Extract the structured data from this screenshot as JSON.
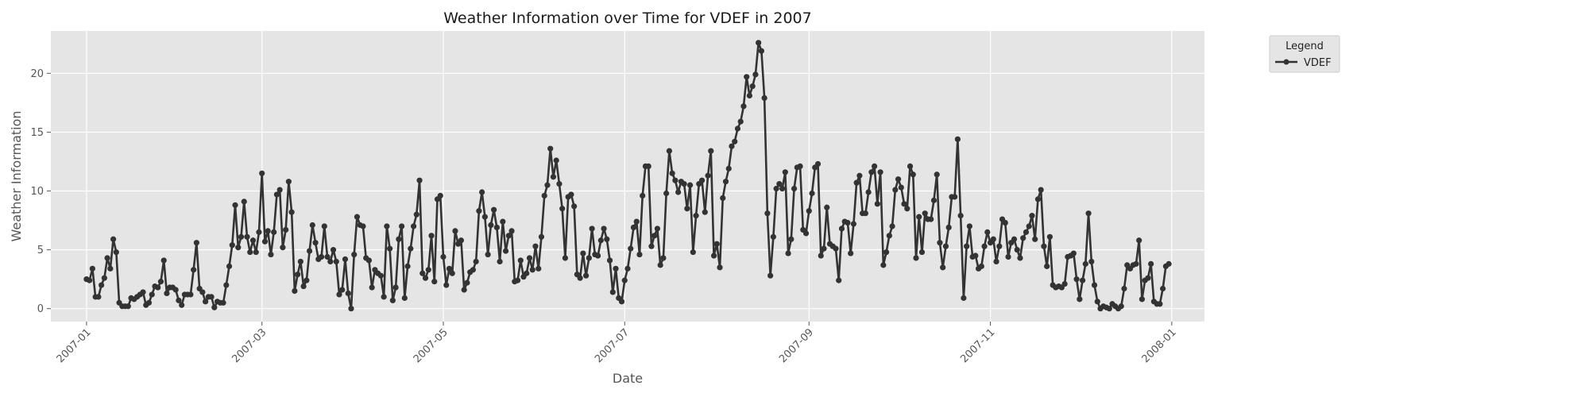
{
  "chart_data": {
    "type": "line",
    "title": "Weather Information over Time for VDEF in 2007",
    "xlabel": "Date",
    "ylabel": "Weather Information",
    "xlim": [
      "2006-12-20",
      "2008-01-12"
    ],
    "ylim": [
      -1.1,
      23.6
    ],
    "x_ticks": [
      "2007-01",
      "2007-03",
      "2007-05",
      "2007-07",
      "2007-09",
      "2007-11",
      "2008-01"
    ],
    "y_ticks": [
      0,
      5,
      10,
      15,
      20
    ],
    "grid": true,
    "legend": {
      "title": "Legend",
      "placement": "outside-top-right"
    },
    "colors": {
      "series": "#333333",
      "plot_bg": "#e5e5e5",
      "grid": "#ffffff"
    },
    "series": [
      {
        "name": "VDEF",
        "start": "2007-01-01",
        "step_days": 1,
        "values": [
          2.5,
          2.4,
          3.4,
          1.0,
          1.0,
          2.0,
          2.6,
          4.3,
          3.4,
          5.9,
          4.8,
          0.5,
          0.2,
          0.2,
          0.2,
          0.9,
          0.8,
          1.0,
          1.2,
          1.4,
          0.3,
          0.5,
          1.2,
          1.9,
          1.8,
          2.3,
          4.1,
          1.3,
          1.8,
          1.8,
          1.6,
          0.7,
          0.3,
          1.2,
          1.2,
          1.2,
          3.3,
          5.6,
          1.7,
          1.4,
          0.6,
          1.0,
          1.0,
          0.1,
          0.6,
          0.5,
          0.5,
          2.0,
          3.6,
          5.4,
          8.8,
          5.2,
          6.1,
          9.1,
          6.1,
          4.8,
          5.8,
          4.8,
          6.5,
          11.5,
          5.7,
          6.6,
          4.6,
          6.5,
          9.7,
          10.1,
          5.2,
          6.7,
          10.8,
          8.2,
          1.5,
          2.9,
          4.0,
          1.9,
          2.4,
          4.9,
          7.1,
          5.6,
          4.2,
          4.4,
          7.0,
          4.4,
          4.0,
          5.0,
          4.0,
          1.2,
          1.6,
          4.2,
          1.3,
          0.0,
          4.6,
          7.8,
          7.1,
          7.0,
          4.3,
          4.1,
          1.8,
          3.3,
          3.0,
          2.8,
          1.0,
          7.0,
          5.1,
          0.7,
          1.8,
          5.9,
          7.0,
          0.9,
          3.6,
          5.1,
          7.0,
          8.0,
          10.9,
          3.0,
          2.6,
          3.3,
          6.2,
          2.3,
          9.3,
          9.6,
          4.4,
          2.0,
          3.4,
          3.0,
          6.6,
          5.5,
          5.8,
          1.6,
          2.2,
          3.1,
          3.3,
          4.0,
          8.3,
          9.9,
          7.8,
          4.6,
          7.1,
          8.4,
          6.9,
          4.0,
          7.4,
          4.9,
          6.2,
          6.6,
          2.3,
          2.4,
          4.1,
          2.7,
          3.0,
          4.3,
          3.3,
          5.3,
          3.4,
          6.1,
          9.6,
          10.5,
          13.6,
          11.2,
          12.6,
          10.6,
          8.5,
          4.3,
          9.5,
          9.7,
          8.7,
          2.9,
          2.6,
          4.7,
          2.8,
          4.3,
          6.8,
          4.6,
          4.5,
          5.8,
          6.8,
          5.9,
          4.1,
          1.4,
          3.4,
          0.9,
          0.6,
          2.4,
          3.4,
          5.1,
          6.9,
          7.4,
          4.6,
          9.6,
          12.1,
          12.1,
          5.3,
          6.2,
          6.8,
          3.7,
          4.3,
          9.8,
          13.4,
          11.5,
          10.9,
          9.9,
          10.8,
          10.6,
          8.5,
          10.5,
          4.8,
          7.9,
          10.6,
          10.9,
          8.2,
          11.3,
          13.4,
          4.5,
          5.5,
          3.5,
          9.4,
          10.8,
          11.9,
          13.8,
          14.2,
          15.3,
          15.9,
          17.2,
          19.7,
          18.1,
          18.9,
          19.9,
          22.6,
          21.9,
          17.9,
          8.1,
          2.8,
          6.1,
          10.2,
          10.6,
          10.2,
          11.6,
          4.7,
          5.9,
          10.2,
          12.0,
          12.1,
          6.7,
          6.4,
          8.3,
          9.8,
          12.0,
          12.3,
          4.5,
          5.1,
          8.6,
          5.5,
          5.3,
          5.1,
          2.4,
          6.8,
          7.4,
          7.3,
          4.7,
          7.2,
          10.7,
          11.3,
          8.1,
          8.1,
          9.9,
          11.6,
          12.1,
          8.9,
          11.6,
          3.7,
          4.8,
          6.2,
          7.0,
          10.1,
          11.0,
          10.3,
          8.9,
          8.5,
          12.1,
          11.4,
          4.3,
          7.8,
          4.8,
          8.1,
          7.6,
          7.6,
          9.2,
          11.4,
          5.6,
          3.5,
          5.3,
          6.9,
          9.5,
          9.5,
          14.4,
          7.9,
          0.9,
          5.3,
          7.0,
          4.4,
          4.5,
          3.4,
          3.6,
          5.3,
          6.5,
          5.6,
          5.9,
          4.0,
          5.3,
          7.6,
          7.3,
          4.4,
          5.6,
          5.9,
          5.0,
          4.3,
          6.0,
          6.5,
          7.0,
          7.9,
          5.9,
          9.3,
          10.1,
          5.3,
          3.6,
          6.1,
          2.0,
          1.8,
          1.9,
          1.8,
          2.1,
          4.4,
          4.5,
          4.7,
          2.5,
          0.8,
          2.4,
          3.8,
          8.1,
          4.0,
          2.0,
          0.6,
          0.0,
          0.2,
          0.1,
          0.0,
          0.4,
          0.2,
          0.0,
          0.2,
          1.7,
          3.7,
          3.4,
          3.7,
          3.8,
          5.8,
          0.8,
          2.4,
          2.6,
          3.8,
          0.6,
          0.4,
          0.4,
          1.7,
          3.6,
          3.8
        ]
      }
    ]
  }
}
